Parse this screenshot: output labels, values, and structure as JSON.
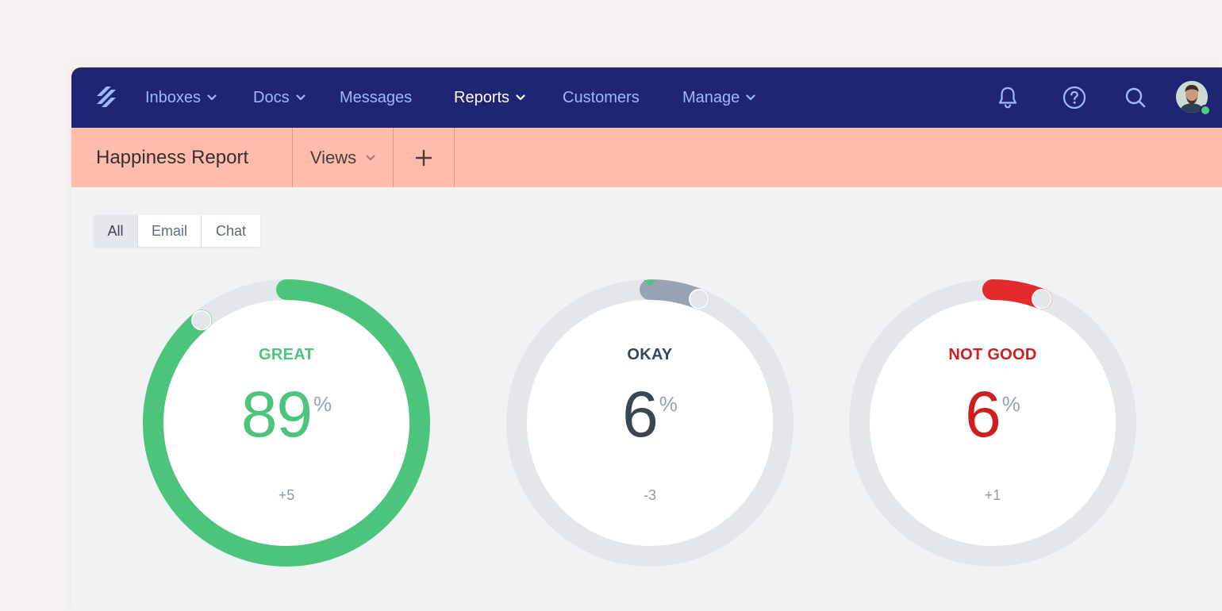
{
  "nav": {
    "items": [
      {
        "label": "Inboxes",
        "has_dropdown": true,
        "active": false
      },
      {
        "label": "Docs",
        "has_dropdown": true,
        "active": false
      },
      {
        "label": "Messages",
        "has_dropdown": false,
        "active": false
      },
      {
        "label": "Reports",
        "has_dropdown": true,
        "active": true
      },
      {
        "label": "Customers",
        "has_dropdown": false,
        "active": false
      },
      {
        "label": "Manage",
        "has_dropdown": true,
        "active": false
      }
    ],
    "icons": [
      "bell-icon",
      "help-icon",
      "search-icon",
      "avatar"
    ],
    "colors": {
      "background": "#1f2473",
      "text": "#9fb7ff",
      "active_text": "#ffffff"
    }
  },
  "subheader": {
    "title": "Happiness Report",
    "views_label": "Views",
    "add_icon": "plus-icon",
    "background": "#ffbcad"
  },
  "filter": {
    "options": [
      "All",
      "Email",
      "Chat"
    ],
    "selected": "All"
  },
  "gauges": [
    {
      "label": "GREAT",
      "value": "89",
      "unit": "%",
      "delta": "+5",
      "trend": "up",
      "percent": 89,
      "color": "#4dc47c",
      "value_color": "#4dc47c",
      "arrow_color": "#4dc47c"
    },
    {
      "label": "OKAY",
      "value": "6",
      "unit": "%",
      "delta": "-3",
      "trend": "down",
      "percent": 6,
      "color": "#98a4b1",
      "value_color": "#3a4652",
      "arrow_color": "#4dc47c"
    },
    {
      "label": "NOT GOOD",
      "value": "6",
      "unit": "%",
      "delta": "+1",
      "trend": "up",
      "percent": 6,
      "color": "#e32b2b",
      "value_color": "#cc2020",
      "arrow_color": "#e32b2b"
    }
  ]
}
